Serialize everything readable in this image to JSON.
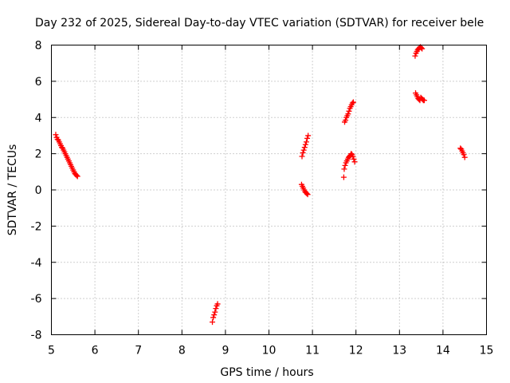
{
  "chart_data": {
    "type": "scatter",
    "title": "Day 232 of 2025, Sidereal Day-to-day VTEC variation (SDTVAR) for receiver bele",
    "xlabel": "GPS time / hours",
    "ylabel": "SDTVAR / TECUs",
    "xlim": [
      5,
      15
    ],
    "ylim": [
      -8,
      8
    ],
    "xticks": [
      "5",
      "6",
      "7",
      "8",
      "9",
      "10",
      "11",
      "12",
      "13",
      "14",
      "15"
    ],
    "yticks": [
      "-8",
      "-6",
      "-4",
      "-2",
      "0",
      "2",
      "4",
      "6",
      "8"
    ],
    "grid": true,
    "marker": "+",
    "color": "#ff0000",
    "series": [
      {
        "points": [
          [
            5.1,
            3.05
          ],
          [
            5.12,
            2.9
          ],
          [
            5.14,
            2.8
          ],
          [
            5.16,
            2.75
          ],
          [
            5.18,
            2.65
          ],
          [
            5.2,
            2.55
          ],
          [
            5.22,
            2.45
          ],
          [
            5.24,
            2.35
          ],
          [
            5.26,
            2.3
          ],
          [
            5.28,
            2.2
          ],
          [
            5.3,
            2.1
          ],
          [
            5.32,
            2.0
          ],
          [
            5.34,
            1.9
          ],
          [
            5.36,
            1.8
          ],
          [
            5.38,
            1.7
          ],
          [
            5.4,
            1.6
          ],
          [
            5.42,
            1.5
          ],
          [
            5.44,
            1.4
          ],
          [
            5.46,
            1.3
          ],
          [
            5.48,
            1.2
          ],
          [
            5.5,
            1.1
          ],
          [
            5.52,
            1.0
          ],
          [
            5.54,
            0.9
          ],
          [
            5.56,
            0.85
          ],
          [
            5.58,
            0.8
          ],
          [
            5.6,
            0.75
          ],
          [
            8.7,
            -7.3
          ],
          [
            8.72,
            -7.05
          ],
          [
            8.74,
            -6.9
          ],
          [
            8.76,
            -6.75
          ],
          [
            8.78,
            -6.55
          ],
          [
            8.8,
            -6.4
          ],
          [
            8.82,
            -6.3
          ],
          [
            10.75,
            0.3
          ],
          [
            10.77,
            0.2
          ],
          [
            10.79,
            0.1
          ],
          [
            10.81,
            0.0
          ],
          [
            10.83,
            -0.1
          ],
          [
            10.85,
            -0.15
          ],
          [
            10.87,
            -0.2
          ],
          [
            10.89,
            -0.25
          ],
          [
            10.76,
            1.85
          ],
          [
            10.78,
            2.05
          ],
          [
            10.8,
            2.2
          ],
          [
            10.82,
            2.35
          ],
          [
            10.84,
            2.5
          ],
          [
            10.86,
            2.65
          ],
          [
            10.88,
            2.85
          ],
          [
            10.9,
            3.0
          ],
          [
            11.72,
            0.7
          ],
          [
            11.73,
            1.15
          ],
          [
            11.75,
            1.35
          ],
          [
            11.77,
            1.5
          ],
          [
            11.79,
            1.6
          ],
          [
            11.81,
            1.7
          ],
          [
            11.83,
            1.8
          ],
          [
            11.85,
            1.85
          ],
          [
            11.87,
            1.9
          ],
          [
            11.89,
            2.0
          ],
          [
            11.91,
            1.95
          ],
          [
            11.93,
            1.85
          ],
          [
            11.95,
            1.7
          ],
          [
            11.97,
            1.55
          ],
          [
            11.74,
            3.75
          ],
          [
            11.76,
            3.85
          ],
          [
            11.78,
            4.0
          ],
          [
            11.8,
            4.1
          ],
          [
            11.82,
            4.2
          ],
          [
            11.84,
            4.35
          ],
          [
            11.86,
            4.5
          ],
          [
            11.88,
            4.6
          ],
          [
            11.9,
            4.7
          ],
          [
            11.92,
            4.8
          ],
          [
            11.94,
            4.85
          ],
          [
            13.36,
            7.4
          ],
          [
            13.38,
            7.55
          ],
          [
            13.4,
            7.65
          ],
          [
            13.42,
            7.75
          ],
          [
            13.44,
            7.8
          ],
          [
            13.46,
            7.85
          ],
          [
            13.48,
            7.9
          ],
          [
            13.5,
            7.85
          ],
          [
            13.52,
            7.8
          ],
          [
            13.37,
            5.35
          ],
          [
            13.39,
            5.25
          ],
          [
            13.41,
            5.15
          ],
          [
            13.43,
            5.05
          ],
          [
            13.45,
            5.0
          ],
          [
            13.47,
            4.95
          ],
          [
            13.49,
            5.1
          ],
          [
            13.51,
            5.05
          ],
          [
            13.53,
            5.0
          ],
          [
            13.55,
            4.95
          ],
          [
            13.57,
            4.95
          ],
          [
            14.4,
            2.3
          ],
          [
            14.42,
            2.25
          ],
          [
            14.44,
            2.15
          ],
          [
            14.46,
            2.05
          ],
          [
            14.48,
            1.95
          ],
          [
            14.5,
            1.8
          ]
        ]
      }
    ]
  }
}
